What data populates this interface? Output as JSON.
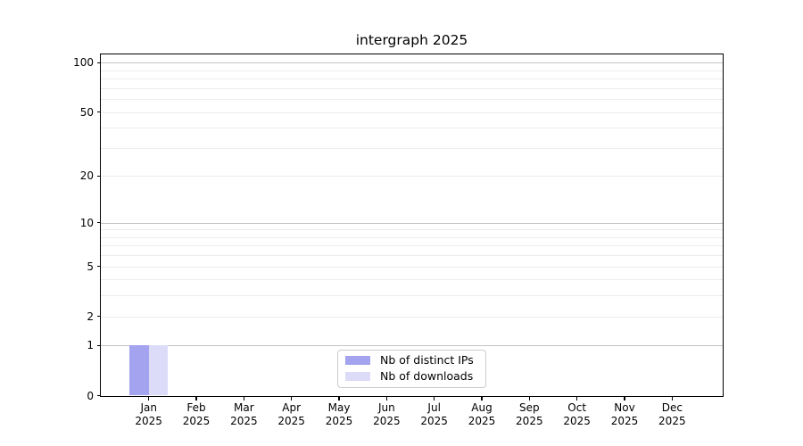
{
  "chart_data": {
    "type": "bar",
    "title": "intergraph 2025",
    "y_scale": "log10(1+y)",
    "ylim": [
      0,
      113
    ],
    "categories": [
      "Jan",
      "Feb",
      "Mar",
      "Apr",
      "May",
      "Jun",
      "Jul",
      "Aug",
      "Sep",
      "Oct",
      "Nov",
      "Dec"
    ],
    "category_year": "2025",
    "series": [
      {
        "name": "Nb of distinct IPs",
        "color": "#a3a3f0",
        "values": [
          1,
          0,
          0,
          0,
          0,
          0,
          0,
          0,
          0,
          0,
          0,
          0
        ]
      },
      {
        "name": "Nb of downloads",
        "color": "#dcdcf8",
        "values": [
          1,
          0,
          0,
          0,
          0,
          0,
          0,
          0,
          0,
          0,
          0,
          0
        ]
      }
    ],
    "y_ticks": [
      0,
      1,
      2,
      5,
      10,
      20,
      50,
      100
    ],
    "grid": {
      "major_values": [
        1,
        10,
        100
      ],
      "minor_values": [
        2,
        3,
        4,
        5,
        6,
        7,
        8,
        9,
        20,
        30,
        40,
        50,
        60,
        70,
        80,
        90
      ],
      "major_color": "#c4c4c4",
      "minor_color": "#ececec"
    },
    "legend": {
      "position": "lower center"
    },
    "axis_color": "#000000",
    "background_color": "#ffffff"
  }
}
